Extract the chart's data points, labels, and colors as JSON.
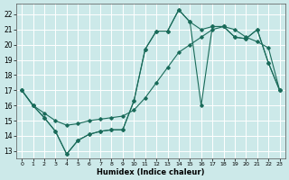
{
  "xlabel": "Humidex (Indice chaleur)",
  "bg_color": "#cce9e9",
  "grid_color": "#ffffff",
  "line_color": "#1a6b5a",
  "xlim": [
    -0.5,
    23.5
  ],
  "ylim": [
    12.5,
    22.7
  ],
  "xticks": [
    0,
    1,
    2,
    3,
    4,
    5,
    6,
    7,
    8,
    9,
    10,
    11,
    12,
    13,
    14,
    15,
    16,
    17,
    18,
    19,
    20,
    21,
    22,
    23
  ],
  "yticks": [
    13,
    14,
    15,
    16,
    17,
    18,
    19,
    20,
    21,
    22
  ],
  "series1_x": [
    0,
    1,
    2,
    3,
    4,
    5,
    6,
    7,
    8,
    9,
    10,
    11,
    12,
    13,
    14,
    15,
    16,
    17,
    18,
    19,
    20,
    21,
    22,
    23
  ],
  "series1_y": [
    17.0,
    16.0,
    15.2,
    14.3,
    12.8,
    13.7,
    14.1,
    14.3,
    14.4,
    14.4,
    16.3,
    19.7,
    20.9,
    20.9,
    22.3,
    21.5,
    16.0,
    21.2,
    21.2,
    20.5,
    20.4,
    21.0,
    18.8,
    17.0
  ],
  "series2_x": [
    0,
    1,
    2,
    3,
    4,
    5,
    6,
    7,
    8,
    9,
    10,
    11,
    12,
    13,
    14,
    15,
    16,
    17,
    18,
    19,
    20,
    21,
    22,
    23
  ],
  "series2_y": [
    17.0,
    16.0,
    15.5,
    15.0,
    14.7,
    14.8,
    15.0,
    15.1,
    15.2,
    15.3,
    15.7,
    16.5,
    17.5,
    18.5,
    19.5,
    20.0,
    20.5,
    21.0,
    21.2,
    21.0,
    20.5,
    20.2,
    19.8,
    17.0
  ],
  "series3_x": [
    0,
    1,
    2,
    3,
    4,
    5,
    6,
    7,
    8,
    9,
    10,
    11,
    12,
    13,
    14,
    15,
    16,
    17,
    18,
    19,
    20,
    21,
    22,
    23
  ],
  "series3_y": [
    17.0,
    16.0,
    15.2,
    14.3,
    12.8,
    13.7,
    14.1,
    14.3,
    14.4,
    14.4,
    16.3,
    19.7,
    20.9,
    20.9,
    22.3,
    21.5,
    21.0,
    21.2,
    21.2,
    20.5,
    20.4,
    21.0,
    18.8,
    17.0
  ]
}
